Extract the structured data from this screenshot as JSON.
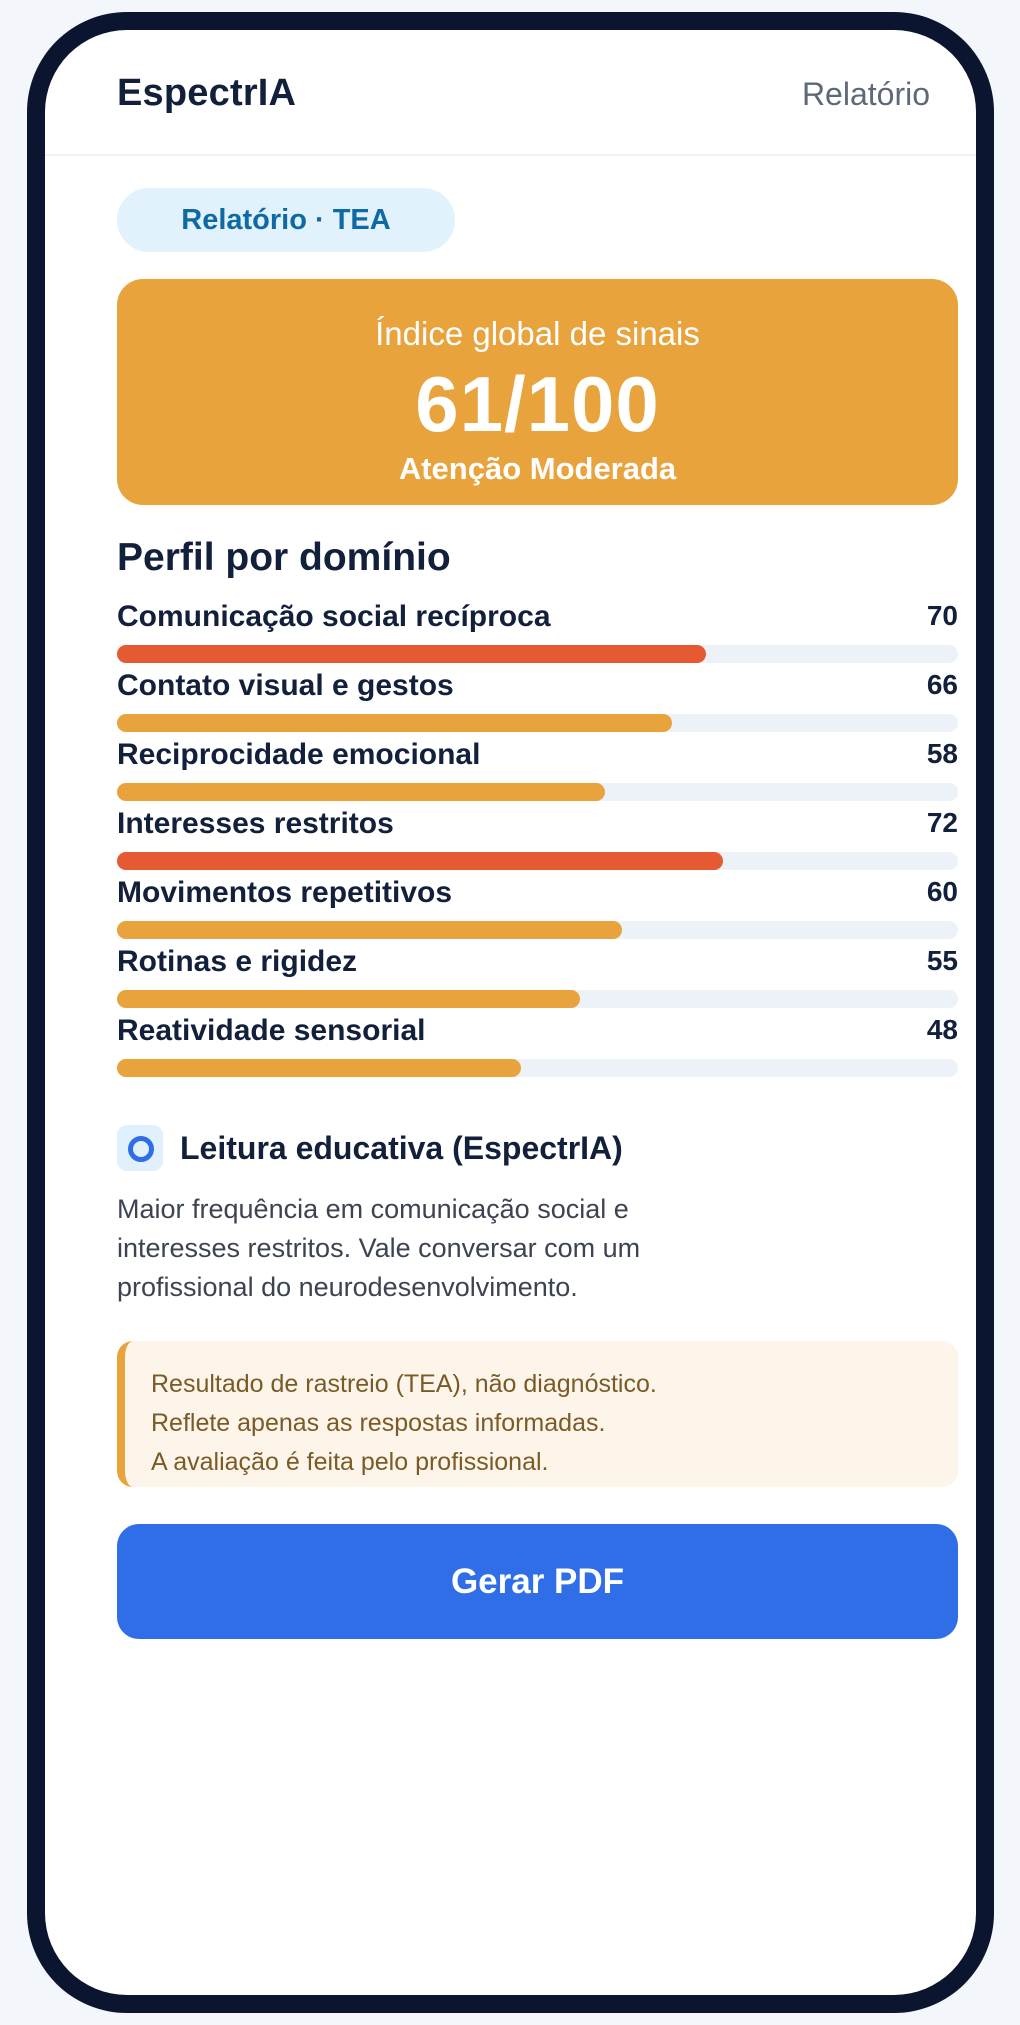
{
  "header": {
    "brand": "EspectrIA",
    "link": "Relatório"
  },
  "report_tag": "Relatório · TEA",
  "score": {
    "label": "Índice global de sinais",
    "value": "61/100",
    "status": "Atenção Moderada"
  },
  "profile": {
    "title": "Perfil por domínio",
    "domains": [
      {
        "name": "Comunicação social recíproca",
        "score": 70,
        "level": "high"
      },
      {
        "name": "Contato visual e gestos",
        "score": 66,
        "level": "moderate"
      },
      {
        "name": "Reciprocidade emocional",
        "score": 58,
        "level": "moderate"
      },
      {
        "name": "Interesses restritos",
        "score": 72,
        "level": "high"
      },
      {
        "name": "Movimentos repetitivos",
        "score": 60,
        "level": "moderate"
      },
      {
        "name": "Rotinas e rigidez",
        "score": 55,
        "level": "moderate"
      },
      {
        "name": "Reatividade sensorial",
        "score": 48,
        "level": "moderate"
      }
    ]
  },
  "reading": {
    "icon": "radio-circle-icon",
    "title": "Leitura educativa (EspectrIA)",
    "lines": [
      "Maior frequência em comunicação social e",
      "interesses restritos. Vale conversar com um",
      "profissional do neurodesenvolvimento."
    ]
  },
  "disclaimer": {
    "lines": [
      "Resultado de rastreio (TEA), não diagnóstico.",
      "Reflete apenas as respostas informadas.",
      "A avaliação é feita pelo profissional."
    ]
  },
  "cta_label": "Gerar PDF",
  "colors": {
    "accent": "#2f6ee6",
    "moderate": "#e8a33d",
    "high": "#e55a33",
    "track": "#edf1f8"
  }
}
